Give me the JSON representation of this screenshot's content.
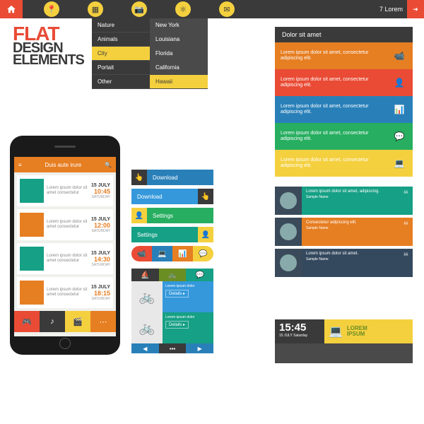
{
  "topbar": {
    "count": "7 Lorem"
  },
  "title": {
    "l1": "FLAT",
    "l2": "DESIGN",
    "l3": "ELEMENTS"
  },
  "colors": {
    "red": "#e94b35",
    "orange": "#e67e22",
    "yellow": "#f4d03f",
    "green": "#27ae60",
    "teal": "#16a085",
    "blue": "#2980b9",
    "lblue": "#3498db",
    "dark": "#3a3a3a",
    "olive": "#6b8e23",
    "slate": "#34495e"
  },
  "menu": {
    "main": [
      "Nature",
      "Animals",
      "City",
      "Portait",
      "Other"
    ],
    "selected": "City",
    "sub": [
      "New York",
      "Louisiana",
      "Florida",
      "California",
      "Hawaii"
    ],
    "subsel": "Hawaii"
  },
  "panel": {
    "title": "Dolor sit amet",
    "rows": [
      {
        "color": "#e67e22",
        "icon": "📹",
        "txt": "Lorem ipsum dolor sit amet, consectetur adipiscing elit."
      },
      {
        "color": "#e94b35",
        "icon": "👤",
        "txt": "Lorem ipsum dolor sit amet, consectetur adipiscing elit."
      },
      {
        "color": "#2980b9",
        "icon": "📊",
        "txt": "Lorem ipsum dolor sit amet, consectetur adipiscing elit."
      },
      {
        "color": "#27ae60",
        "icon": "💬",
        "txt": "Lorem ipsum dolor sit amet, consectetur adipiscing elit."
      },
      {
        "color": "#f4d03f",
        "icon": "💻",
        "txt": "Lorem ipsum dolor sit amet, consectetur adipiscing elit."
      }
    ]
  },
  "phone": {
    "title": "Duis aute irure",
    "rows": [
      {
        "c": "#16a085",
        "d": "15 JULY",
        "t": "10:45",
        "s": "SATURDAY"
      },
      {
        "c": "#e67e22",
        "d": "15 JULY",
        "t": "12:00",
        "s": "SATURDAY"
      },
      {
        "c": "#16a085",
        "d": "15 JULY",
        "t": "14:30",
        "s": "SATURDAY"
      },
      {
        "c": "#e67e22",
        "d": "15 JULY",
        "t": "18:15",
        "s": "SATURDAY"
      }
    ],
    "txt": "Lorem ipsum dolor sit amet consectetur",
    "tabs": [
      {
        "c": "#e94b35",
        "i": "🎮"
      },
      {
        "c": "#3a3a3a",
        "i": "♪"
      },
      {
        "c": "#f4d03f",
        "i": "🎬"
      },
      {
        "c": "#e67e22",
        "i": "⋯"
      }
    ]
  },
  "buttons": [
    {
      "bg": "#2980b9",
      "ibg": "#3a3a3a",
      "icon": "👆",
      "label": "Download"
    },
    {
      "bg": "#3498db",
      "ibg": "#3a3a3a",
      "icon": "👆",
      "label": "Download",
      "rev": true
    },
    {
      "bg": "#27ae60",
      "ibg": "#f4d03f",
      "icon": "👤",
      "label": "Settings"
    },
    {
      "bg": "#16a085",
      "ibg": "#f4d03f",
      "icon": "👤",
      "label": "Settings",
      "rev": true
    }
  ],
  "pill": [
    {
      "c": "#e94b35",
      "i": "📹"
    },
    {
      "c": "#2980b9",
      "i": "💻"
    },
    {
      "c": "#e67e22",
      "i": "📊"
    },
    {
      "c": "#f4d03f",
      "i": "💬"
    }
  ],
  "quotes": [
    {
      "c": "#16a085",
      "t": "Lorem ipsum dolor sit amet, adipiscing.",
      "n": "Sample Name"
    },
    {
      "c": "#e67e22",
      "t": "Consectetur adipiscing elit.",
      "n": "Sample Name"
    },
    {
      "c": "#34495e",
      "t": "Lorem ipsum dolor sit amet.",
      "n": "Sample Name"
    }
  ],
  "cards": {
    "tabs": [
      {
        "c": "#3a3a3a",
        "i": "⛵"
      },
      {
        "c": "#6b8e23",
        "i": "🚲"
      },
      {
        "c": "#16a085",
        "i": "💬"
      }
    ],
    "items": [
      {
        "c": "#3498db",
        "t": "Lorem ipsum dolor",
        "b": "Details"
      },
      {
        "c": "#16a085",
        "t": "Lorem ipsum dolor",
        "b": "Details"
      }
    ],
    "nav": [
      {
        "c": "#2980b9",
        "i": "◀"
      },
      {
        "c": "#3a3a3a",
        "i": "▪▪▪"
      },
      {
        "c": "#2980b9",
        "i": "▶"
      }
    ]
  },
  "clock": {
    "time": "15:45",
    "date": "15 JULY Saturday",
    "h1": "LOREM",
    "h2": "IPSUM"
  }
}
